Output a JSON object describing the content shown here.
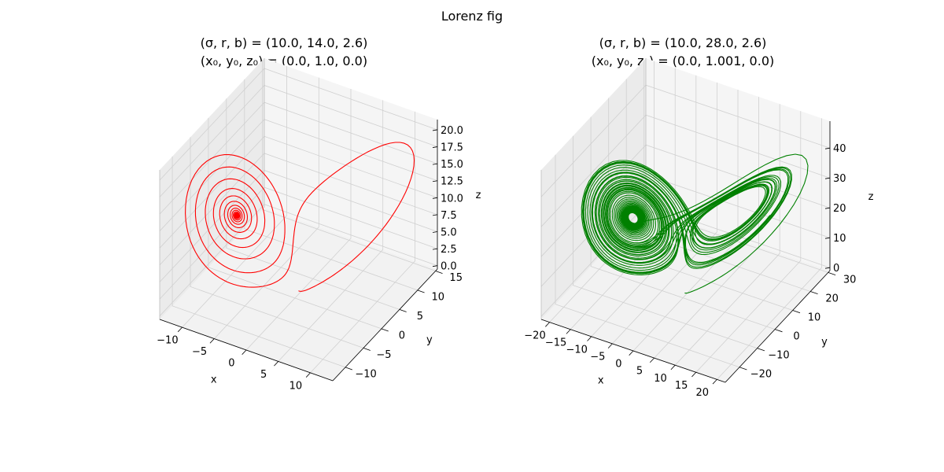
{
  "figure": {
    "suptitle": "Lorenz fig"
  },
  "chart_data": [
    {
      "type": "line3d",
      "title_line1": "(σ, r, b) = (10.0, 14.0, 2.6)",
      "title_line2": "(x₀, y₀, z₀) = (0.0, 1.0, 0.0)",
      "params": {
        "sigma": 10.0,
        "r": 14.0,
        "b": 2.6
      },
      "initial": {
        "x0": 0.0,
        "y0": 1.0,
        "z0": 0.0
      },
      "line_color": "#ff0000",
      "xlabel": "x",
      "ylabel": "y",
      "zlabel": "z",
      "xlim": [
        -13.5,
        13.5
      ],
      "ylim": [
        -13.5,
        15.5
      ],
      "zlim": [
        -0.5,
        21.5
      ],
      "xticks": [
        -10,
        -5,
        0,
        5,
        10
      ],
      "yticks": [
        -10,
        -5,
        0,
        5,
        10,
        15
      ],
      "zticks": [
        0.0,
        2.5,
        5.0,
        7.5,
        10.0,
        12.5,
        15.0,
        17.5,
        20.0
      ],
      "xtick_labels": [
        "−10",
        "−5",
        "0",
        "5",
        "10"
      ],
      "ytick_labels": [
        "−10",
        "−5",
        "0",
        "5",
        "10",
        "15"
      ],
      "ztick_labels": [
        "0.0",
        "2.5",
        "5.0",
        "7.5",
        "10.0",
        "12.5",
        "15.0",
        "17.5",
        "20.0"
      ],
      "grid": true
    },
    {
      "type": "line3d",
      "title_line1": "(σ, r, b) = (10.0, 28.0, 2.6)",
      "title_line2": "(x₀, y₀, z₀) = (0.0, 1.001, 0.0)",
      "params": {
        "sigma": 10.0,
        "r": 28.0,
        "b": 2.6
      },
      "initial": {
        "x0": 0.0,
        "y0": 1.001,
        "z0": 0.0
      },
      "line_color": "#008000",
      "xlabel": "x",
      "ylabel": "y",
      "zlabel": "z",
      "xlim": [
        -22,
        22
      ],
      "ylim": [
        -28,
        31
      ],
      "zlim": [
        -1,
        49
      ],
      "xticks": [
        -20,
        -15,
        -10,
        -5,
        0,
        5,
        10,
        15,
        20
      ],
      "yticks": [
        -20,
        -10,
        0,
        10,
        20,
        30
      ],
      "zticks": [
        0,
        10,
        20,
        30,
        40
      ],
      "xtick_labels": [
        "−20",
        "−15",
        "−10",
        "−5",
        "0",
        "5",
        "10",
        "15",
        "20"
      ],
      "ytick_labels": [
        "−20",
        "−10",
        "0",
        "10",
        "20",
        "30"
      ],
      "ztick_labels": [
        "0",
        "10",
        "20",
        "30",
        "40"
      ],
      "grid": true
    }
  ]
}
